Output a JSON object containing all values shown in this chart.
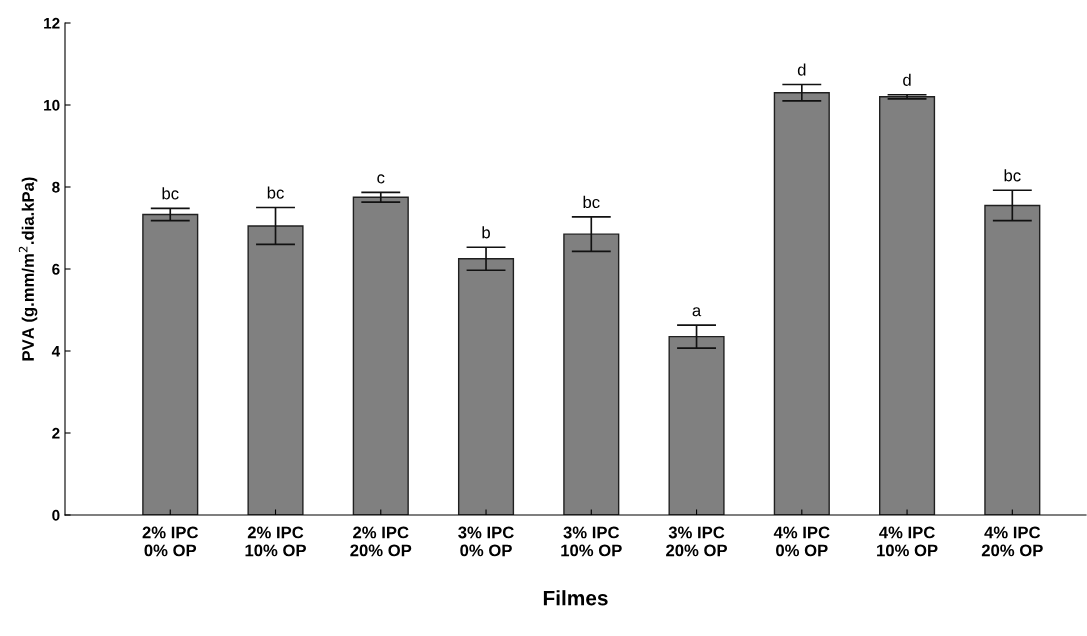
{
  "chart_data": {
    "type": "bar",
    "xlabel": "Filmes",
    "ylabel": "PVA (g.mm/m$^{2}$.dia.kPa)",
    "categories": [
      "2% IPC\n0% OP",
      "2% IPC\n10% OP",
      "2% IPC\n20% OP",
      "3% IPC\n0% OP",
      "3% IPC\n10% OP",
      "3% IPC\n20% OP",
      "4% IPC\n0% OP",
      "4% IPC\n10% OP",
      "4% IPC\n20% OP"
    ],
    "values": [
      7.33,
      7.05,
      7.75,
      6.25,
      6.85,
      4.35,
      10.3,
      10.2,
      7.55
    ],
    "errors": [
      0.15,
      0.45,
      0.12,
      0.28,
      0.42,
      0.28,
      0.2,
      0.05,
      0.37
    ],
    "color": "#808080",
    "ylim": [
      0,
      12
    ],
    "yticks": [
      0,
      2,
      4,
      6,
      8,
      10,
      12
    ],
    "grid": false,
    "annotations": [
      {
        "text": "bc",
        "x": "2% IPC\n0% OP",
        "y": 7.48
      },
      {
        "text": "bc",
        "x": "2% IPC\n10% OP",
        "y": 7.5
      },
      {
        "text": "c",
        "x": "2% IPC\n20% OP",
        "y": 7.87
      },
      {
        "text": "b",
        "x": "3% IPC\n0% OP",
        "y": 6.53
      },
      {
        "text": "bc",
        "x": "3% IPC\n10% OP",
        "y": 7.27
      },
      {
        "text": "a",
        "x": "3% IPC\n20% OP",
        "y": 4.63
      },
      {
        "text": "d",
        "x": "4% IPC\n0% OP",
        "y": 10.5
      },
      {
        "text": "d",
        "x": "4% IPC\n10% OP",
        "y": 10.25
      },
      {
        "text": "bc",
        "x": "4% IPC\n20% OP",
        "y": 7.92
      }
    ]
  }
}
